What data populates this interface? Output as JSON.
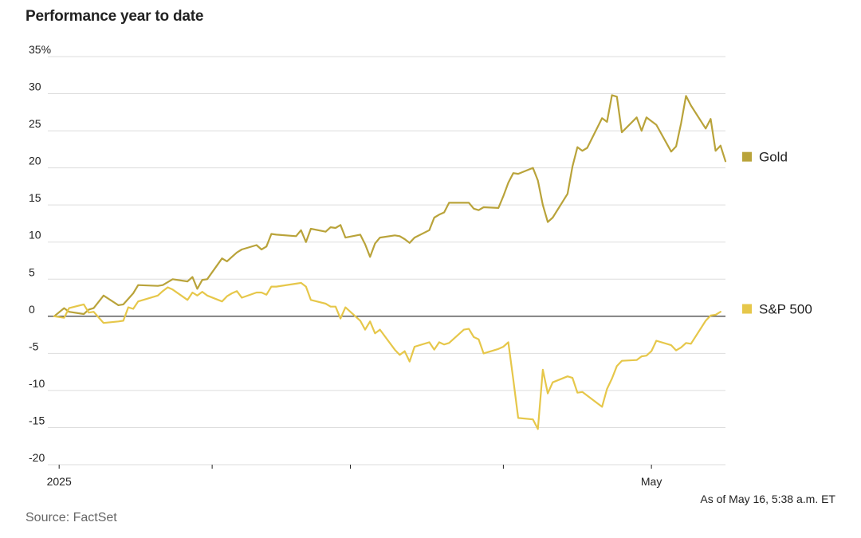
{
  "header": {
    "title": "Performance year to date"
  },
  "footer": {
    "as_of": "As of May 16, 5:38 a.m. ET",
    "source": "Source: FactSet"
  },
  "colors": {
    "gold": "#b9a33a",
    "sp500": "#e6c74a",
    "grid": "#dddddd",
    "zero": "#222222"
  },
  "chart_data": {
    "type": "line",
    "title": "Performance year to date",
    "xlabel": "",
    "ylabel": "",
    "ylim": [
      -20,
      35
    ],
    "yticks": [
      -20,
      -15,
      -10,
      -5,
      0,
      5,
      10,
      15,
      20,
      25,
      30,
      35
    ],
    "ytick_labels": [
      "-20",
      "-15",
      "-10",
      "-5",
      "0",
      "5",
      "10",
      "15",
      "20",
      "25",
      "30",
      "35%"
    ],
    "xlim": [
      "2024-12-31",
      "2025-05-16"
    ],
    "xtick_dates": [
      "2025-01-01",
      "2025-02-01",
      "2025-03-01",
      "2025-04-01",
      "2025-05-01"
    ],
    "xtick_labels": [
      "2025",
      "",
      "",
      "",
      "May"
    ],
    "grid": true,
    "legend": "right",
    "series": [
      {
        "name": "Gold",
        "color_key": "gold",
        "points": [
          [
            "2024-12-31",
            0
          ],
          [
            "2025-01-02",
            1.1
          ],
          [
            "2025-01-03",
            0.6
          ],
          [
            "2025-01-06",
            0.3
          ],
          [
            "2025-01-07",
            0.9
          ],
          [
            "2025-01-08",
            1.1
          ],
          [
            "2025-01-10",
            2.8
          ],
          [
            "2025-01-13",
            1.5
          ],
          [
            "2025-01-14",
            1.6
          ],
          [
            "2025-01-16",
            3.1
          ],
          [
            "2025-01-17",
            4.2
          ],
          [
            "2025-01-21",
            4.1
          ],
          [
            "2025-01-22",
            4.2
          ],
          [
            "2025-01-24",
            5.0
          ],
          [
            "2025-01-27",
            4.7
          ],
          [
            "2025-01-28",
            5.3
          ],
          [
            "2025-01-29",
            3.7
          ],
          [
            "2025-01-30",
            4.9
          ],
          [
            "2025-01-31",
            5.0
          ],
          [
            "2025-02-03",
            7.8
          ],
          [
            "2025-02-04",
            7.4
          ],
          [
            "2025-02-05",
            8.0
          ],
          [
            "2025-02-06",
            8.6
          ],
          [
            "2025-02-07",
            9.0
          ],
          [
            "2025-02-10",
            9.6
          ],
          [
            "2025-02-11",
            9.0
          ],
          [
            "2025-02-12",
            9.4
          ],
          [
            "2025-02-13",
            11.1
          ],
          [
            "2025-02-14",
            11.0
          ],
          [
            "2025-02-18",
            10.8
          ],
          [
            "2025-02-19",
            11.6
          ],
          [
            "2025-02-20",
            10.0
          ],
          [
            "2025-02-21",
            11.8
          ],
          [
            "2025-02-24",
            11.4
          ],
          [
            "2025-02-25",
            12.0
          ],
          [
            "2025-02-26",
            11.9
          ],
          [
            "2025-02-27",
            12.3
          ],
          [
            "2025-02-28",
            10.6
          ],
          [
            "2025-03-03",
            11.0
          ],
          [
            "2025-03-04",
            9.7
          ],
          [
            "2025-03-05",
            8.0
          ],
          [
            "2025-03-06",
            9.8
          ],
          [
            "2025-03-07",
            10.6
          ],
          [
            "2025-03-10",
            10.9
          ],
          [
            "2025-03-11",
            10.8
          ],
          [
            "2025-03-12",
            10.4
          ],
          [
            "2025-03-13",
            9.9
          ],
          [
            "2025-03-14",
            10.6
          ],
          [
            "2025-03-17",
            11.6
          ],
          [
            "2025-03-18",
            13.3
          ],
          [
            "2025-03-19",
            13.7
          ],
          [
            "2025-03-20",
            14.0
          ],
          [
            "2025-03-21",
            15.3
          ],
          [
            "2025-03-24",
            15.3
          ],
          [
            "2025-03-25",
            15.3
          ],
          [
            "2025-03-26",
            14.5
          ],
          [
            "2025-03-27",
            14.3
          ],
          [
            "2025-03-28",
            14.7
          ],
          [
            "2025-03-31",
            14.6
          ],
          [
            "2025-04-01",
            16.2
          ],
          [
            "2025-04-02",
            18.0
          ],
          [
            "2025-04-03",
            19.3
          ],
          [
            "2025-04-04",
            19.2
          ],
          [
            "2025-04-07",
            20.0
          ],
          [
            "2025-04-08",
            18.3
          ],
          [
            "2025-04-09",
            15.0
          ],
          [
            "2025-04-10",
            12.7
          ],
          [
            "2025-04-11",
            13.3
          ],
          [
            "2025-04-14",
            16.5
          ],
          [
            "2025-04-15",
            20.2
          ],
          [
            "2025-04-16",
            22.8
          ],
          [
            "2025-04-17",
            22.3
          ],
          [
            "2025-04-18",
            22.7
          ],
          [
            "2025-04-21",
            26.7
          ],
          [
            "2025-04-22",
            26.2
          ],
          [
            "2025-04-23",
            29.8
          ],
          [
            "2025-04-24",
            29.6
          ],
          [
            "2025-04-25",
            24.8
          ],
          [
            "2025-04-28",
            26.8
          ],
          [
            "2025-04-29",
            25.0
          ],
          [
            "2025-04-30",
            26.8
          ],
          [
            "2025-05-01",
            26.3
          ],
          [
            "2025-05-02",
            25.8
          ],
          [
            "2025-05-05",
            22.2
          ],
          [
            "2025-05-06",
            22.9
          ],
          [
            "2025-05-07",
            26.0
          ],
          [
            "2025-05-08",
            29.7
          ],
          [
            "2025-05-09",
            28.4
          ],
          [
            "2025-05-12",
            25.3
          ],
          [
            "2025-05-13",
            26.6
          ],
          [
            "2025-05-14",
            22.3
          ],
          [
            "2025-05-15",
            23.0
          ],
          [
            "2025-05-16",
            20.9
          ]
        ]
      },
      {
        "name": "S&P 500",
        "color_key": "sp500",
        "points": [
          [
            "2024-12-31",
            0
          ],
          [
            "2025-01-02",
            -0.2
          ],
          [
            "2025-01-03",
            1.1
          ],
          [
            "2025-01-06",
            1.6
          ],
          [
            "2025-01-07",
            0.5
          ],
          [
            "2025-01-08",
            0.6
          ],
          [
            "2025-01-10",
            -0.9
          ],
          [
            "2025-01-13",
            -0.7
          ],
          [
            "2025-01-14",
            -0.6
          ],
          [
            "2025-01-15",
            1.2
          ],
          [
            "2025-01-16",
            1.0
          ],
          [
            "2025-01-17",
            2.0
          ],
          [
            "2025-01-21",
            2.8
          ],
          [
            "2025-01-22",
            3.4
          ],
          [
            "2025-01-23",
            3.9
          ],
          [
            "2025-01-24",
            3.6
          ],
          [
            "2025-01-27",
            2.2
          ],
          [
            "2025-01-28",
            3.2
          ],
          [
            "2025-01-29",
            2.8
          ],
          [
            "2025-01-30",
            3.3
          ],
          [
            "2025-01-31",
            2.8
          ],
          [
            "2025-02-03",
            2.0
          ],
          [
            "2025-02-04",
            2.7
          ],
          [
            "2025-02-05",
            3.1
          ],
          [
            "2025-02-06",
            3.4
          ],
          [
            "2025-02-07",
            2.5
          ],
          [
            "2025-02-10",
            3.2
          ],
          [
            "2025-02-11",
            3.2
          ],
          [
            "2025-02-12",
            2.9
          ],
          [
            "2025-02-13",
            4.0
          ],
          [
            "2025-02-14",
            4.0
          ],
          [
            "2025-02-18",
            4.4
          ],
          [
            "2025-02-19",
            4.5
          ],
          [
            "2025-02-20",
            4.0
          ],
          [
            "2025-02-21",
            2.2
          ],
          [
            "2025-02-24",
            1.7
          ],
          [
            "2025-02-25",
            1.3
          ],
          [
            "2025-02-26",
            1.3
          ],
          [
            "2025-02-27",
            -0.3
          ],
          [
            "2025-02-28",
            1.2
          ],
          [
            "2025-03-03",
            -0.6
          ],
          [
            "2025-03-04",
            -1.8
          ],
          [
            "2025-03-05",
            -0.7
          ],
          [
            "2025-03-06",
            -2.3
          ],
          [
            "2025-03-07",
            -1.8
          ],
          [
            "2025-03-10",
            -4.5
          ],
          [
            "2025-03-11",
            -5.2
          ],
          [
            "2025-03-12",
            -4.7
          ],
          [
            "2025-03-13",
            -6.1
          ],
          [
            "2025-03-14",
            -4.1
          ],
          [
            "2025-03-17",
            -3.5
          ],
          [
            "2025-03-18",
            -4.5
          ],
          [
            "2025-03-19",
            -3.5
          ],
          [
            "2025-03-20",
            -3.8
          ],
          [
            "2025-03-21",
            -3.6
          ],
          [
            "2025-03-24",
            -1.8
          ],
          [
            "2025-03-25",
            -1.7
          ],
          [
            "2025-03-26",
            -2.8
          ],
          [
            "2025-03-27",
            -3.1
          ],
          [
            "2025-03-28",
            -5.0
          ],
          [
            "2025-03-31",
            -4.4
          ],
          [
            "2025-04-01",
            -4.1
          ],
          [
            "2025-04-02",
            -3.5
          ],
          [
            "2025-04-03",
            -8.5
          ],
          [
            "2025-04-04",
            -13.7
          ],
          [
            "2025-04-07",
            -13.9
          ],
          [
            "2025-04-08",
            -15.2
          ],
          [
            "2025-04-09",
            -7.2
          ],
          [
            "2025-04-10",
            -10.4
          ],
          [
            "2025-04-11",
            -8.9
          ],
          [
            "2025-04-14",
            -8.1
          ],
          [
            "2025-04-15",
            -8.3
          ],
          [
            "2025-04-16",
            -10.3
          ],
          [
            "2025-04-17",
            -10.2
          ],
          [
            "2025-04-21",
            -12.2
          ],
          [
            "2025-04-22",
            -9.8
          ],
          [
            "2025-04-23",
            -8.4
          ],
          [
            "2025-04-24",
            -6.7
          ],
          [
            "2025-04-25",
            -6.0
          ],
          [
            "2025-04-28",
            -5.9
          ],
          [
            "2025-04-29",
            -5.4
          ],
          [
            "2025-04-30",
            -5.3
          ],
          [
            "2025-05-01",
            -4.7
          ],
          [
            "2025-05-02",
            -3.3
          ],
          [
            "2025-05-05",
            -3.9
          ],
          [
            "2025-05-06",
            -4.6
          ],
          [
            "2025-05-07",
            -4.2
          ],
          [
            "2025-05-08",
            -3.6
          ],
          [
            "2025-05-09",
            -3.7
          ],
          [
            "2025-05-12",
            -0.6
          ],
          [
            "2025-05-13",
            0.1
          ],
          [
            "2025-05-14",
            0.2
          ],
          [
            "2025-05-15",
            0.6
          ]
        ]
      }
    ]
  }
}
